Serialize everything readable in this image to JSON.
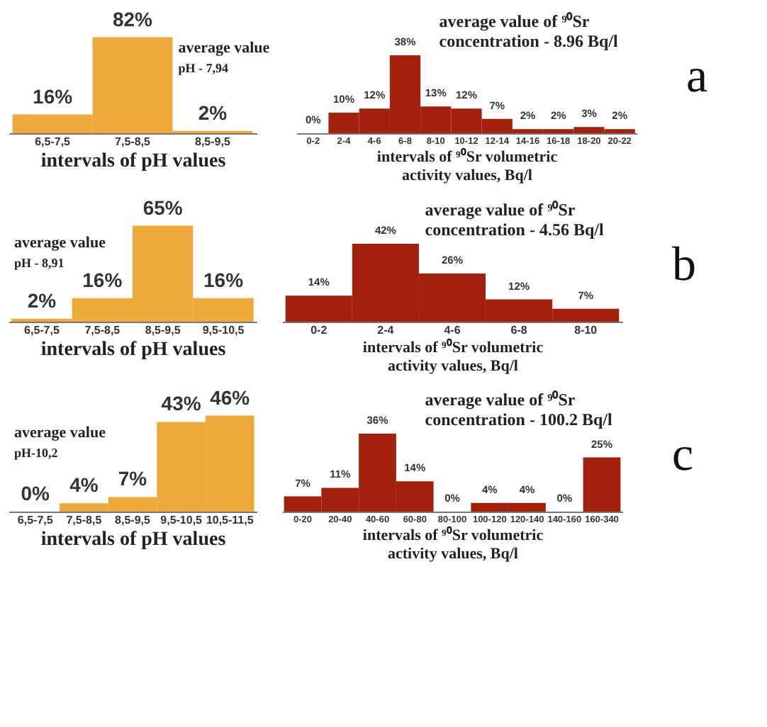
{
  "chart_data": [
    {
      "type": "bar",
      "categories": [
        "6,5-7,5",
        "7,5-8,5",
        "8,5-9,5"
      ],
      "values": [
        16,
        82,
        2
      ],
      "value_labels": [
        "16%",
        "82%",
        "2%"
      ],
      "color": "#eda93a",
      "xlabel": "intervals of pH values",
      "annotations": [
        "average value",
        "pH - 7,94"
      ]
    },
    {
      "type": "bar",
      "categories": [
        "0-2",
        "2-4",
        "4-6",
        "6-8",
        "8-10",
        "10-12",
        "12-14",
        "14-16",
        "16-18",
        "18-20",
        "20-22"
      ],
      "values": [
        0,
        10,
        12,
        38,
        13,
        12,
        7,
        2,
        2,
        3,
        2
      ],
      "value_labels": [
        "0%",
        "10%",
        "12%",
        "38%",
        "13%",
        "12%",
        "7%",
        "2%",
        "2%",
        "3%",
        "2%"
      ],
      "color": "#a3200c",
      "xlabel": "intervals of ⁹⁰Sr volumetric activity values, Bq/l",
      "annotations": [
        "average value of ⁹⁰Sr",
        "concentration - 8.96 Bq/l",
        "a"
      ]
    },
    {
      "type": "bar",
      "categories": [
        "6,5-7,5",
        "7,5-8,5",
        "8,5-9,5",
        "9,5-10,5"
      ],
      "values": [
        2,
        16,
        65,
        16
      ],
      "value_labels": [
        "2%",
        "16%",
        "65%",
        "16%"
      ],
      "color": "#eda93a",
      "xlabel": "intervals of pH values",
      "annotations": [
        "average value",
        "pH - 8,91"
      ]
    },
    {
      "type": "bar",
      "categories": [
        "0-2",
        "2-4",
        "4-6",
        "6-8",
        "8-10"
      ],
      "values": [
        14,
        42,
        26,
        12,
        7
      ],
      "value_labels": [
        "14%",
        "42%",
        "26%",
        "12%",
        "7%"
      ],
      "color": "#a3200c",
      "xlabel": "intervals of ⁹⁰Sr volumetric activity values, Bq/l",
      "annotations": [
        "average value of ⁹⁰Sr",
        "concentration - 4.56 Bq/l",
        "b"
      ]
    },
    {
      "type": "bar",
      "categories": [
        "6,5-7,5",
        "7,5-8,5",
        "8,5-9,5",
        "9,5-10,5",
        "10,5-11,5"
      ],
      "values": [
        0,
        4,
        7,
        43,
        46
      ],
      "value_labels": [
        "0%",
        "4%",
        "7%",
        "43%",
        "46%"
      ],
      "color": "#eda93a",
      "xlabel": "intervals of pH values",
      "annotations": [
        "average value",
        "pH-10,2"
      ]
    },
    {
      "type": "bar",
      "categories": [
        "0-20",
        "20-40",
        "40-60",
        "60-80",
        "80-100",
        "100-120",
        "120-140",
        "140-160",
        "160-340"
      ],
      "values": [
        7,
        11,
        36,
        14,
        0,
        4,
        4,
        0,
        25
      ],
      "value_labels": [
        "7%",
        "11%",
        "36%",
        "14%",
        "0%",
        "4%",
        "4%",
        "0%",
        "25%"
      ],
      "color": "#a3200c",
      "xlabel": "intervals of ⁹⁰Sr volumetric activity values, Bq/l",
      "annotations": [
        "average value of ⁹⁰Sr",
        "concentration - 100.2 Bq/l",
        "c"
      ]
    }
  ]
}
